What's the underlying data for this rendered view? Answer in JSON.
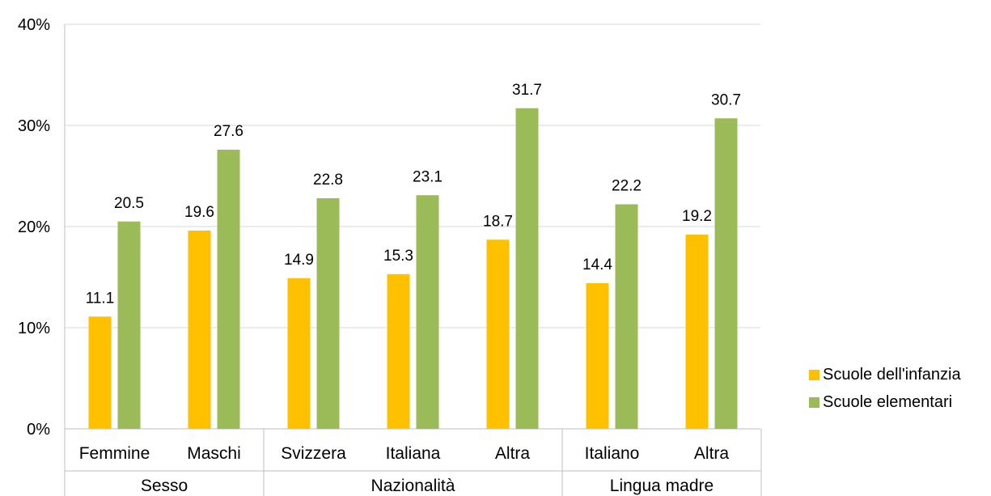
{
  "colors": {
    "infanzia": "#FFC000",
    "elementari": "#9BBB59",
    "grid": "#D9D9D9",
    "axis": "#BFBFBF"
  },
  "chart_data": {
    "type": "bar",
    "yticks": [
      "0%",
      "10%",
      "20%",
      "30%",
      "40%"
    ],
    "ylim": [
      0,
      40
    ],
    "grid": true,
    "legend_position": "right",
    "groups": [
      {
        "label": "Sesso",
        "categories": [
          "Femmine",
          "Maschi"
        ]
      },
      {
        "label": "Nazionalità",
        "categories": [
          "Svizzera",
          "Italiana",
          "Altra"
        ]
      },
      {
        "label": "Lingua madre",
        "categories": [
          "Italiano",
          "Altra"
        ]
      }
    ],
    "categories": [
      "Femmine",
      "Maschi",
      "Svizzera",
      "Italiana",
      "Altra",
      "Italiano",
      "Altra"
    ],
    "series": [
      {
        "name": "Scuole dell'infanzia",
        "values": [
          11.1,
          19.6,
          14.9,
          15.3,
          18.7,
          14.4,
          19.2
        ],
        "labels": [
          "11.1",
          "19.6",
          "14.9",
          "15.3",
          "18.7",
          "14.4",
          "19.2"
        ]
      },
      {
        "name": "Scuole elementari",
        "values": [
          20.5,
          27.6,
          22.8,
          23.1,
          31.7,
          22.2,
          30.7
        ],
        "labels": [
          "20.5",
          "27.6",
          "22.8",
          "23.1",
          "31.7",
          "22.2",
          "30.7"
        ]
      }
    ]
  }
}
